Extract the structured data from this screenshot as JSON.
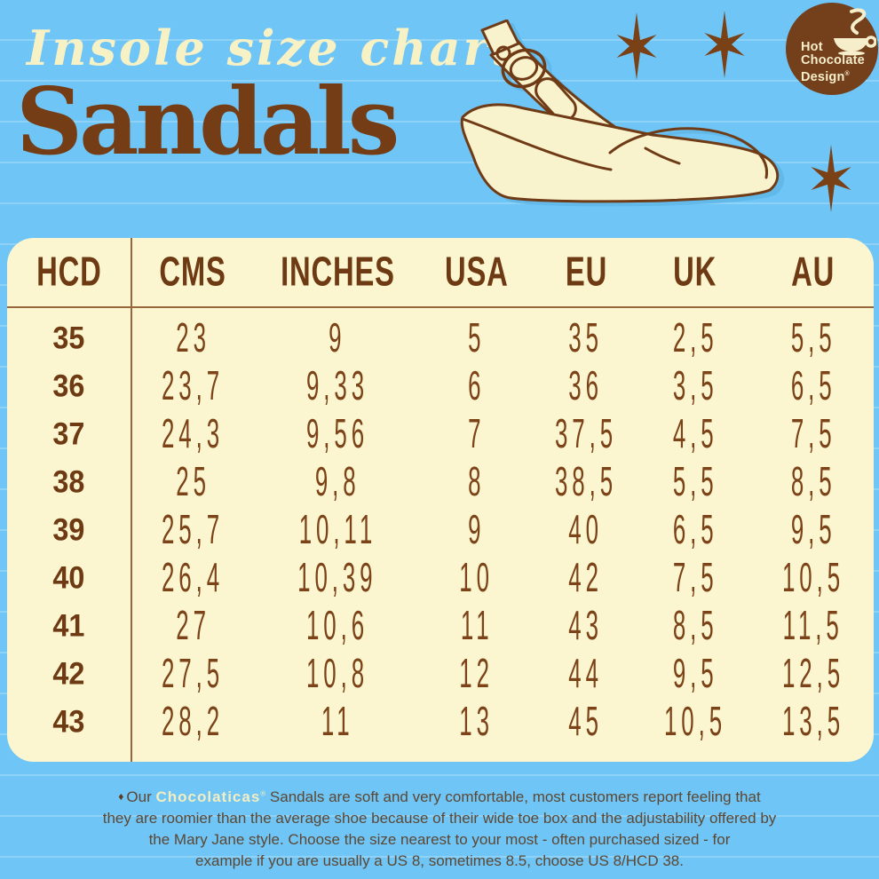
{
  "header": {
    "subtitle": "Insole size chart",
    "title": "Sandals"
  },
  "logo": {
    "lines": [
      "Hot",
      "Chocolate",
      "Design"
    ],
    "reg": "®"
  },
  "decor": {
    "star_count": 3,
    "star_color": "#7a4117"
  },
  "table": {
    "columns": [
      "HCD",
      "CMS",
      "INCHES",
      "USA",
      "EU",
      "UK",
      "AU"
    ],
    "rows": [
      [
        "35",
        "23",
        "9",
        "5",
        "35",
        "2,5",
        "5,5"
      ],
      [
        "36",
        "23,7",
        "9,33",
        "6",
        "36",
        "3,5",
        "6,5"
      ],
      [
        "37",
        "24,3",
        "9,56",
        "7",
        "37,5",
        "4,5",
        "7,5"
      ],
      [
        "38",
        "25",
        "9,8",
        "8",
        "38,5",
        "5,5",
        "8,5"
      ],
      [
        "39",
        "25,7",
        "10,11",
        "9",
        "40",
        "6,5",
        "9,5"
      ],
      [
        "40",
        "26,4",
        "10,39",
        "10",
        "42",
        "7,5",
        "10,5"
      ],
      [
        "41",
        "27",
        "10,6",
        "11",
        "43",
        "8,5",
        "11,5"
      ],
      [
        "42",
        "27,5",
        "10,8",
        "12",
        "44",
        "9,5",
        "12,5"
      ],
      [
        "43",
        "28,2",
        "11",
        "13",
        "45",
        "10,5",
        "13,5"
      ]
    ]
  },
  "footer": {
    "bullet": "♦",
    "line1_pre": "Our ",
    "brand": "Chocolaticas",
    "brand_reg": "®",
    "line1_post": " Sandals are soft and very comfortable, most customers report feeling that",
    "line2": "they are roomier than the average shoe because of their wide toe box and the adjustability offered by",
    "line3": "the Mary Jane style. Choose the size nearest to your most - often  purchased sized - for",
    "line4": "example if you are usually a US 8, sometimes 8.5, choose US 8/HCD 38."
  },
  "colors": {
    "background_blue": "#6fc5f5",
    "panel_cream": "#fbf6d0",
    "brown_dark": "#6e3a13",
    "brown_data": "#7c4319",
    "cream_text": "#f7f1c6",
    "logo_brown": "#73401b",
    "footer_text": "#5d4733"
  }
}
